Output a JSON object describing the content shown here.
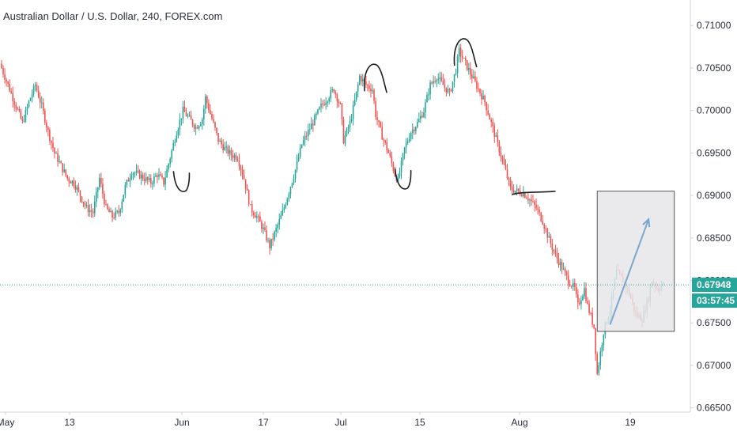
{
  "chart_data": {
    "type": "candlestick",
    "title": "Australian Dollar / U.S. Dollar, 240, FOREX.com",
    "xlabel": "",
    "ylabel": "",
    "ylim": [
      0.6645,
      0.713
    ],
    "y_ticks": [
      "0.71000",
      "0.70500",
      "0.70000",
      "0.69500",
      "0.69000",
      "0.68500",
      "0.68000",
      "0.67500",
      "0.67000",
      "0.66500"
    ],
    "x_ticks": [
      "May",
      "13",
      "Jun",
      "17",
      "Jul",
      "15",
      "Aug",
      "19"
    ],
    "grid": false,
    "last_price": "0.67948",
    "countdown": "03:57:45",
    "colors": {
      "up": "#26a69a",
      "down": "#ef5350",
      "price_line": "#26a69a",
      "price_badge": "#26a69a",
      "countdown_badge": "#26a69a",
      "annotation_stroke": "#1e1e1e",
      "forecast_arrow": "#7aa7cf",
      "forecast_box_fill": "#e6e6e9",
      "forecast_box_stroke": "#555555",
      "axis_text": "#2a2e39",
      "axis_line": "#d1d4dc"
    },
    "price_path": [
      [
        0,
        0.7055
      ],
      [
        5,
        0.703
      ],
      [
        10,
        0.7005
      ],
      [
        14,
        0.6985
      ],
      [
        18,
        0.701
      ],
      [
        22,
        0.703
      ],
      [
        26,
        0.7005
      ],
      [
        30,
        0.6975
      ],
      [
        34,
        0.695
      ],
      [
        38,
        0.6935
      ],
      [
        42,
        0.692
      ],
      [
        46,
        0.6915
      ],
      [
        50,
        0.69
      ],
      [
        54,
        0.6885
      ],
      [
        58,
        0.688
      ],
      [
        62,
        0.692
      ],
      [
        66,
        0.6885
      ],
      [
        70,
        0.6875
      ],
      [
        74,
        0.688
      ],
      [
        78,
        0.691
      ],
      [
        82,
        0.6928
      ],
      [
        86,
        0.6925
      ],
      [
        90,
        0.692
      ],
      [
        94,
        0.6915
      ],
      [
        98,
        0.6925
      ],
      [
        102,
        0.6915
      ],
      [
        106,
        0.6945
      ],
      [
        110,
        0.6975
      ],
      [
        114,
        0.7
      ],
      [
        118,
        0.699
      ],
      [
        122,
        0.698
      ],
      [
        126,
        0.699
      ],
      [
        128,
        0.7015
      ],
      [
        132,
        0.699
      ],
      [
        136,
        0.6965
      ],
      [
        140,
        0.6955
      ],
      [
        144,
        0.6948
      ],
      [
        148,
        0.6945
      ],
      [
        152,
        0.692
      ],
      [
        156,
        0.6885
      ],
      [
        160,
        0.6875
      ],
      [
        164,
        0.686
      ],
      [
        168,
        0.684
      ],
      [
        172,
        0.686
      ],
      [
        176,
        0.688
      ],
      [
        180,
        0.6905
      ],
      [
        184,
        0.693
      ],
      [
        188,
        0.696
      ],
      [
        192,
        0.6975
      ],
      [
        196,
        0.699
      ],
      [
        200,
        0.7005
      ],
      [
        204,
        0.7015
      ],
      [
        208,
        0.7025
      ],
      [
        212,
        0.7005
      ],
      [
        214,
        0.6965
      ],
      [
        218,
        0.6985
      ],
      [
        222,
        0.702
      ],
      [
        224,
        0.704
      ],
      [
        228,
        0.703
      ],
      [
        232,
        0.7025
      ],
      [
        234,
        0.6995
      ],
      [
        238,
        0.697
      ],
      [
        242,
        0.695
      ],
      [
        246,
        0.6925
      ],
      [
        248,
        0.6918
      ],
      [
        252,
        0.6955
      ],
      [
        256,
        0.6975
      ],
      [
        260,
        0.6985
      ],
      [
        264,
        0.7
      ],
      [
        268,
        0.703
      ],
      [
        272,
        0.704
      ],
      [
        276,
        0.703
      ],
      [
        280,
        0.702
      ],
      [
        284,
        0.7048
      ],
      [
        286,
        0.707
      ],
      [
        290,
        0.7055
      ],
      [
        294,
        0.704
      ],
      [
        298,
        0.7025
      ],
      [
        302,
        0.701
      ],
      [
        306,
        0.6985
      ],
      [
        310,
        0.696
      ],
      [
        314,
        0.6935
      ],
      [
        318,
        0.6908
      ],
      [
        322,
        0.6905
      ],
      [
        326,
        0.6903
      ],
      [
        330,
        0.6895
      ],
      [
        334,
        0.6885
      ],
      [
        338,
        0.687
      ],
      [
        342,
        0.6848
      ],
      [
        346,
        0.683
      ],
      [
        350,
        0.6815
      ],
      [
        354,
        0.68
      ],
      [
        358,
        0.679
      ],
      [
        360,
        0.677
      ],
      [
        364,
        0.679
      ],
      [
        366,
        0.677
      ],
      [
        370,
        0.6745
      ],
      [
        372,
        0.669
      ],
      [
        376,
        0.674
      ],
      [
        380,
        0.6765
      ],
      [
        384,
        0.681
      ],
      [
        388,
        0.68
      ],
      [
        392,
        0.6785
      ],
      [
        396,
        0.676
      ],
      [
        400,
        0.6755
      ],
      [
        404,
        0.678
      ],
      [
        406,
        0.68
      ],
      [
        410,
        0.679
      ],
      [
        412,
        0.6795
      ]
    ],
    "dotted_levels": [
      0.67948
    ],
    "annotations": [
      {
        "label": "trough-May",
        "x": 114,
        "y": 0.6915,
        "shape": "trough"
      },
      {
        "label": "peak-Jul",
        "x": 232,
        "y": 0.704,
        "shape": "peak"
      },
      {
        "label": "trough-Jul",
        "x": 252,
        "y": 0.6918,
        "shape": "trough"
      },
      {
        "label": "peak-mid-Jul",
        "x": 288,
        "y": 0.707,
        "shape": "peak"
      },
      {
        "label": "flat-Aug-1",
        "x": 326,
        "y": 0.6903,
        "shape": "flat"
      }
    ],
    "forecast_box": {
      "x0": 372,
      "x1": 420,
      "y0": 0.6905,
      "y1": 0.674
    },
    "forecast_arrow": {
      "x0": 380,
      "y0": 0.6748,
      "x1": 404,
      "y1": 0.6872
    }
  }
}
